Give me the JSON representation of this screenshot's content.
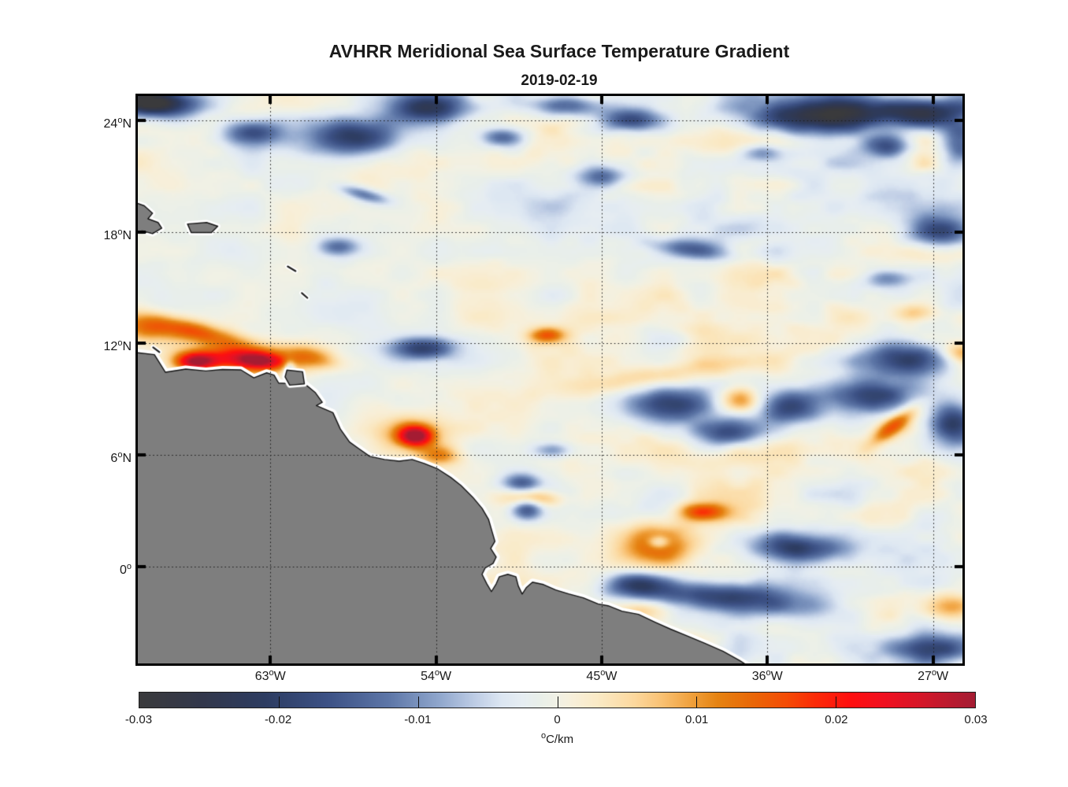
{
  "title": "AVHRR Meridional Sea Surface Temperature Gradient",
  "subtitle": "2019-02-19",
  "chart_data": {
    "type": "heatmap",
    "title": "AVHRR Meridional Sea Surface Temperature Gradient",
    "date": "2019-02-19",
    "units": "°C/km",
    "grid": true,
    "extent": {
      "lon_west_degW": 70.2,
      "lon_east_degW": 25.4,
      "lat_north": 25.3,
      "lat_south": -5.2
    },
    "x_ticks": [
      {
        "degW": 63,
        "label": "63°W"
      },
      {
        "degW": 54,
        "label": "54°W"
      },
      {
        "degW": 45,
        "label": "45°W"
      },
      {
        "degW": 36,
        "label": "36°W"
      },
      {
        "degW": 27,
        "label": "27°W"
      }
    ],
    "y_ticks": [
      {
        "lat": 24,
        "label": "24°N"
      },
      {
        "lat": 18,
        "label": "18°N"
      },
      {
        "lat": 12,
        "label": "12°N"
      },
      {
        "lat": 6,
        "label": "6°N"
      },
      {
        "lat": 0,
        "label": "0°"
      }
    ],
    "colorbar": {
      "orientation": "horizontal",
      "min": -0.03,
      "max": 0.03,
      "tick_values": [
        -0.03,
        -0.02,
        -0.01,
        0,
        0.01,
        0.02,
        0.03
      ],
      "tick_labels": [
        "-0.03",
        "-0.02",
        "-0.01",
        "0",
        "0.01",
        "0.02",
        "0.03"
      ],
      "label": "°C/km",
      "stops": [
        [
          -0.03,
          "#3a3a3c"
        ],
        [
          -0.0255,
          "#32374b"
        ],
        [
          -0.021,
          "#2d3c61"
        ],
        [
          -0.0165,
          "#3c5185"
        ],
        [
          -0.012,
          "#5e77a8"
        ],
        [
          -0.0085,
          "#8fa6cc"
        ],
        [
          -0.006,
          "#bccbe4"
        ],
        [
          -0.004,
          "#dce6f2"
        ],
        [
          -0.0025,
          "#e6edf2"
        ],
        [
          -0.0012,
          "#e9efe9"
        ],
        [
          0,
          "#f1f1e5"
        ],
        [
          0.0012,
          "#f8efd9"
        ],
        [
          0.003,
          "#fae9c4"
        ],
        [
          0.0055,
          "#fcd89e"
        ],
        [
          0.0075,
          "#f9c173"
        ],
        [
          0.0095,
          "#f0a23f"
        ],
        [
          0.0115,
          "#e58312"
        ],
        [
          0.014,
          "#e96707"
        ],
        [
          0.0165,
          "#f44b05"
        ],
        [
          0.0185,
          "#fb2b07"
        ],
        [
          0.021,
          "#fe0f0f"
        ],
        [
          0.0235,
          "#f01020"
        ],
        [
          0.026,
          "#d61628"
        ],
        [
          0.028,
          "#bc1a2e"
        ],
        [
          0.03,
          "#a41c33"
        ]
      ]
    },
    "land_color": "#7e7e7e",
    "coast_halo_color": "#ffffff",
    "coast_outline_color": "#141414",
    "gridline_color": "#1c1c1c",
    "ocean_bias": -0.0006,
    "noise": {
      "seed": 20190219,
      "x_stretch": 1.7,
      "octaves": [
        [
          150,
          0.0016
        ],
        [
          64,
          0.003
        ],
        [
          28,
          0.003
        ],
        [
          14,
          0.0011
        ]
      ]
    },
    "coastline": [
      [
        72,
        11.5
      ],
      [
        70.2,
        11.5
      ],
      [
        69.3,
        11.4
      ],
      [
        68.7,
        10.45
      ],
      [
        67.6,
        10.62
      ],
      [
        66.5,
        10.52
      ],
      [
        65.6,
        10.6
      ],
      [
        64.6,
        10.58
      ],
      [
        63.9,
        10.15
      ],
      [
        63.2,
        10.42
      ],
      [
        62.8,
        10.3
      ],
      [
        62.55,
        9.87
      ],
      [
        61.1,
        9.8
      ],
      [
        60.55,
        9.35
      ],
      [
        60.18,
        8.84
      ],
      [
        60.5,
        8.66
      ],
      [
        60.0,
        8.45
      ],
      [
        59.6,
        8.28
      ],
      [
        59.2,
        7.4
      ],
      [
        58.7,
        6.7
      ],
      [
        58.2,
        6.35
      ],
      [
        57.6,
        5.93
      ],
      [
        56.8,
        5.76
      ],
      [
        56.0,
        5.67
      ],
      [
        55.3,
        5.76
      ],
      [
        54.65,
        5.55
      ],
      [
        53.9,
        5.25
      ],
      [
        53.2,
        4.8
      ],
      [
        52.65,
        4.37
      ],
      [
        52.0,
        3.73
      ],
      [
        51.5,
        3.14
      ],
      [
        51.15,
        2.55
      ],
      [
        50.95,
        1.87
      ],
      [
        50.8,
        1.36
      ],
      [
        51.03,
        0.98
      ],
      [
        50.73,
        0.52
      ],
      [
        50.9,
        0.18
      ],
      [
        51.33,
        -0.07
      ],
      [
        51.5,
        -0.41
      ],
      [
        51.24,
        -0.92
      ],
      [
        50.99,
        -1.34
      ],
      [
        50.73,
        -0.92
      ],
      [
        50.56,
        -0.54
      ],
      [
        50.1,
        -0.41
      ],
      [
        49.66,
        -0.54
      ],
      [
        49.53,
        -1.04
      ],
      [
        49.32,
        -1.47
      ],
      [
        49.1,
        -1.13
      ],
      [
        48.76,
        -0.83
      ],
      [
        48.16,
        -0.96
      ],
      [
        47.5,
        -1.25
      ],
      [
        46.8,
        -1.46
      ],
      [
        46.0,
        -1.67
      ],
      [
        45.2,
        -2.0
      ],
      [
        44.65,
        -2.1
      ],
      [
        43.9,
        -2.39
      ],
      [
        43.0,
        -2.56
      ],
      [
        42.1,
        -2.98
      ],
      [
        41.25,
        -3.36
      ],
      [
        40.4,
        -3.7
      ],
      [
        39.4,
        -4.12
      ],
      [
        38.4,
        -4.55
      ],
      [
        37.5,
        -5.05
      ],
      [
        37.1,
        -5.3
      ],
      [
        36.8,
        -7.0
      ],
      [
        72.0,
        -7.0
      ]
    ],
    "islands": [
      [
        [
          71,
          19.8
        ],
        [
          69.85,
          19.4
        ],
        [
          69.4,
          19.0
        ],
        [
          69.65,
          18.7
        ],
        [
          69.1,
          18.5
        ],
        [
          68.9,
          18.2
        ],
        [
          69.4,
          17.9
        ],
        [
          69.95,
          18.05
        ],
        [
          71,
          17.9
        ]
      ],
      [
        [
          67.5,
          18.42
        ],
        [
          66.46,
          18.5
        ],
        [
          65.86,
          18.3
        ],
        [
          66.2,
          17.96
        ],
        [
          67.3,
          17.96
        ]
      ],
      [
        [
          62.1,
          10.57
        ],
        [
          61.25,
          10.48
        ],
        [
          61.15,
          9.83
        ],
        [
          61.95,
          9.76
        ],
        [
          62.2,
          10.2
        ]
      ]
    ],
    "island_marks": [
      [
        [
          69.37,
          11.79
        ],
        [
          69.03,
          11.54
        ]
      ],
      [
        [
          62.06,
          16.14
        ],
        [
          61.63,
          15.89
        ]
      ],
      [
        [
          61.29,
          14.71
        ],
        [
          60.99,
          14.45
        ]
      ]
    ],
    "features": [
      [
        67.1,
        12.68,
        50,
        10,
        14,
        0.017
      ],
      [
        64.62,
        11.2,
        45,
        11,
        5,
        0.022
      ],
      [
        63.56,
        11.16,
        20,
        7,
        5,
        0.013
      ],
      [
        67.1,
        11.07,
        18,
        8,
        0,
        0.026
      ],
      [
        60.9,
        11.35,
        28,
        10,
        12,
        0.012
      ],
      [
        69.97,
        12.76,
        26,
        11,
        10,
        0.011
      ],
      [
        55.18,
        7.1,
        15,
        9,
        0,
        0.027
      ],
      [
        55.35,
        7.2,
        38,
        20,
        0,
        0.008
      ],
      [
        53.8,
        6.04,
        18,
        8,
        0,
        0.009
      ],
      [
        48.03,
        12.51,
        16,
        7,
        0,
        0.014
      ],
      [
        37.48,
        9.0,
        20,
        12,
        0,
        0.014
      ],
      [
        41.96,
        1.39,
        32,
        18,
        0,
        0.015
      ],
      [
        41.96,
        1.39,
        10,
        6,
        0,
        -0.011
      ],
      [
        39.6,
        3.04,
        22,
        8,
        0,
        0.015
      ],
      [
        48.76,
        3.72,
        26,
        8,
        0,
        0.013
      ],
      [
        29.22,
        7.63,
        26,
        8,
        -38,
        0.014
      ],
      [
        27.94,
        13.73,
        22,
        9,
        0,
        0.01
      ],
      [
        41.32,
        10.35,
        70,
        10,
        -8,
        0.006
      ],
      [
        26.13,
        -2.11,
        25,
        12,
        0,
        0.01
      ],
      [
        42.82,
        -2.19,
        25,
        10,
        0,
        0.008
      ],
      [
        42.05,
        -3.59,
        50,
        10,
        10,
        0.007
      ],
      [
        25.5,
        11.6,
        18,
        10,
        0,
        0.011
      ],
      [
        68.9,
        24.92,
        35,
        12,
        0,
        -0.021
      ],
      [
        70.0,
        25.1,
        30,
        10,
        0,
        -0.017
      ],
      [
        63.98,
        23.41,
        28,
        12,
        0,
        -0.015
      ],
      [
        58.51,
        23.16,
        42,
        16,
        0,
        -0.021
      ],
      [
        54.36,
        24.8,
        35,
        14,
        0,
        -0.022
      ],
      [
        50.52,
        23.15,
        18,
        8,
        0,
        -0.012
      ],
      [
        46.88,
        24.85,
        35,
        10,
        0,
        -0.017
      ],
      [
        43.46,
        24.08,
        28,
        10,
        0,
        -0.015
      ],
      [
        33.2,
        24.38,
        55,
        16,
        0,
        -0.025
      ],
      [
        28.07,
        24.5,
        45,
        14,
        0,
        -0.025
      ],
      [
        29.57,
        22.69,
        25,
        10,
        0,
        -0.015
      ],
      [
        25.64,
        22.84,
        20,
        25,
        0,
        -0.017
      ],
      [
        36.41,
        22.33,
        18,
        8,
        0,
        -0.011
      ],
      [
        26.79,
        18.09,
        30,
        14,
        0,
        -0.02
      ],
      [
        40.04,
        17.11,
        35,
        9,
        6,
        -0.014
      ],
      [
        57.99,
        20.07,
        22,
        6,
        15,
        -0.013
      ],
      [
        59.37,
        17.24,
        18,
        8,
        0,
        -0.012
      ],
      [
        54.79,
        11.83,
        30,
        10,
        0,
        -0.018
      ],
      [
        45.09,
        21.04,
        20,
        9,
        0,
        -0.012
      ],
      [
        41.45,
        8.79,
        40,
        16,
        0,
        -0.02
      ],
      [
        38.33,
        7.27,
        35,
        13,
        0,
        -0.018
      ],
      [
        34.69,
        8.66,
        30,
        14,
        0,
        -0.02
      ],
      [
        30.2,
        9.3,
        42,
        17,
        0,
        -0.021
      ],
      [
        28.71,
        11.2,
        42,
        15,
        0,
        -0.023
      ],
      [
        25.93,
        7.82,
        22,
        20,
        0,
        -0.022
      ],
      [
        34.27,
        1.06,
        40,
        14,
        0,
        -0.021
      ],
      [
        38.33,
        -1.61,
        75,
        14,
        5,
        -0.02
      ],
      [
        43.03,
        -0.93,
        30,
        12,
        0,
        -0.015
      ],
      [
        49.45,
        4.57,
        16,
        8,
        0,
        -0.013
      ],
      [
        49.15,
        3.18,
        14,
        10,
        0,
        -0.016
      ],
      [
        47.74,
        6.33,
        16,
        7,
        0,
        -0.011
      ],
      [
        27.21,
        -4.35,
        35,
        12,
        0,
        -0.014
      ],
      [
        29.57,
        15.55,
        20,
        9,
        0,
        -0.012
      ],
      [
        62.02,
        10.56,
        5,
        9,
        0,
        -0.015
      ]
    ]
  }
}
